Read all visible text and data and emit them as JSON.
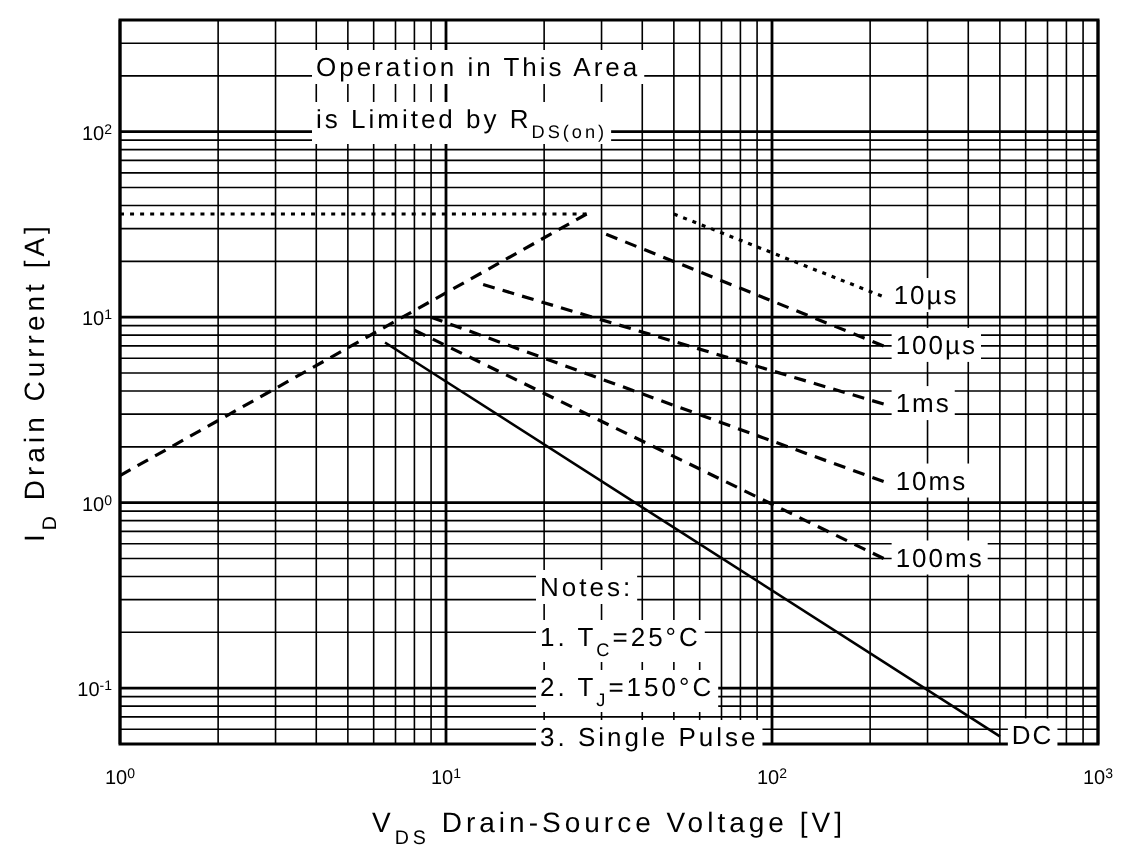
{
  "chart_data": {
    "type": "line",
    "xlabel": "V$_{DS}$ Drain-Source Voltage [V]",
    "ylabel": "I$_{D}$ Drain Current [A]",
    "log": "xy",
    "grid": true,
    "marker": "none",
    "xlim": [
      1,
      1000
    ],
    "ylim": [
      0.05,
      400
    ],
    "xticks": [
      {
        "value": 1,
        "label": "10$^{0}$"
      },
      {
        "value": 2,
        "label": null
      },
      {
        "value": 3,
        "label": null
      },
      {
        "value": 4,
        "label": null
      },
      {
        "value": 5,
        "label": null
      },
      {
        "value": 6,
        "label": null
      },
      {
        "value": 7,
        "label": null
      },
      {
        "value": 8,
        "label": null
      },
      {
        "value": 9,
        "label": null
      },
      {
        "value": 10,
        "label": "10$^{1}$"
      },
      {
        "value": 20,
        "label": null
      },
      {
        "value": 30,
        "label": null
      },
      {
        "value": 40,
        "label": null
      },
      {
        "value": 50,
        "label": null
      },
      {
        "value": 60,
        "label": null
      },
      {
        "value": 70,
        "label": null
      },
      {
        "value": 80,
        "label": null
      },
      {
        "value": 90,
        "label": null
      },
      {
        "value": 100,
        "label": "10$^{2}$"
      },
      {
        "value": 200,
        "label": null
      },
      {
        "value": 300,
        "label": null
      },
      {
        "value": 400,
        "label": null
      },
      {
        "value": 500,
        "label": null
      },
      {
        "value": 600,
        "label": null
      },
      {
        "value": 700,
        "label": null
      },
      {
        "value": 800,
        "label": null
      },
      {
        "value": 900,
        "label": null
      },
      {
        "value": 1000,
        "label": "10$^{3}$"
      }
    ],
    "yticks": [
      {
        "value": 0.06,
        "label": null
      },
      {
        "value": 0.07,
        "label": null
      },
      {
        "value": 0.08,
        "label": null
      },
      {
        "value": 0.09,
        "label": null
      },
      {
        "value": 0.1,
        "label": "10$^{-1}$"
      },
      {
        "value": 0.2,
        "label": null
      },
      {
        "value": 0.3,
        "label": null
      },
      {
        "value": 0.4,
        "label": null
      },
      {
        "value": 0.5,
        "label": null
      },
      {
        "value": 0.6,
        "label": null
      },
      {
        "value": 0.7,
        "label": null
      },
      {
        "value": 0.8,
        "label": null
      },
      {
        "value": 0.9,
        "label": null
      },
      {
        "value": 1,
        "label": "10$^{0}$"
      },
      {
        "value": 2,
        "label": null
      },
      {
        "value": 3,
        "label": null
      },
      {
        "value": 4,
        "label": null
      },
      {
        "value": 5,
        "label": null
      },
      {
        "value": 6,
        "label": null
      },
      {
        "value": 7,
        "label": null
      },
      {
        "value": 8,
        "label": null
      },
      {
        "value": 9,
        "label": null
      },
      {
        "value": 10,
        "label": "10$^{1}$"
      },
      {
        "value": 20,
        "label": null
      },
      {
        "value": 30,
        "label": null
      },
      {
        "value": 40,
        "label": null
      },
      {
        "value": 50,
        "label": null
      },
      {
        "value": 60,
        "label": null
      },
      {
        "value": 70,
        "label": null
      },
      {
        "value": 80,
        "label": null
      },
      {
        "value": 90,
        "label": null
      },
      {
        "value": 100,
        "label": "10$^{2}$"
      },
      {
        "value": 200,
        "label": null
      },
      {
        "value": 300,
        "label": null
      }
    ],
    "series": [
      {
        "color": "#000000",
        "line_style": "dotted",
        "x": [
          1,
          27
        ],
        "values": [
          36,
          36
        ]
      },
      {
        "color": "#000000",
        "line_style": "dashed",
        "x": [
          1,
          27
        ],
        "values": [
          1.4,
          36
        ]
      },
      {
        "name": "10µs",
        "color": "#000000",
        "line_style": "dotted",
        "x": [
          50,
          217
        ],
        "values": [
          36,
          13
        ]
      },
      {
        "name": "100µs",
        "color": "#000000",
        "line_style": "dashed",
        "x": [
          31,
          220
        ],
        "values": [
          28,
          7
        ]
      },
      {
        "name": "1ms",
        "color": "#000000",
        "line_style": "dashed",
        "x": [
          13,
          220
        ],
        "values": [
          15,
          3.4
        ]
      },
      {
        "name": "10ms",
        "color": "#000000",
        "line_style": "dashed",
        "x": [
          9,
          220
        ],
        "values": [
          10,
          1.3
        ]
      },
      {
        "name": "100ms",
        "color": "#000000",
        "line_style": "dashed",
        "x": [
          8,
          220
        ],
        "values": [
          8.5,
          0.5
        ]
      },
      {
        "name": "DC",
        "color": "#000000",
        "line_style": "solid",
        "x": [
          6.5,
          500
        ],
        "values": [
          7.3,
          0.055
        ]
      }
    ],
    "annotations": [
      "Operation in This Area",
      "is Limited by R$_{DS(on)}$",
      "Notes:",
      "1. T$_{C}$=25°C",
      "2. T$_{J}$=150°C",
      "3. Single Pulse"
    ]
  }
}
